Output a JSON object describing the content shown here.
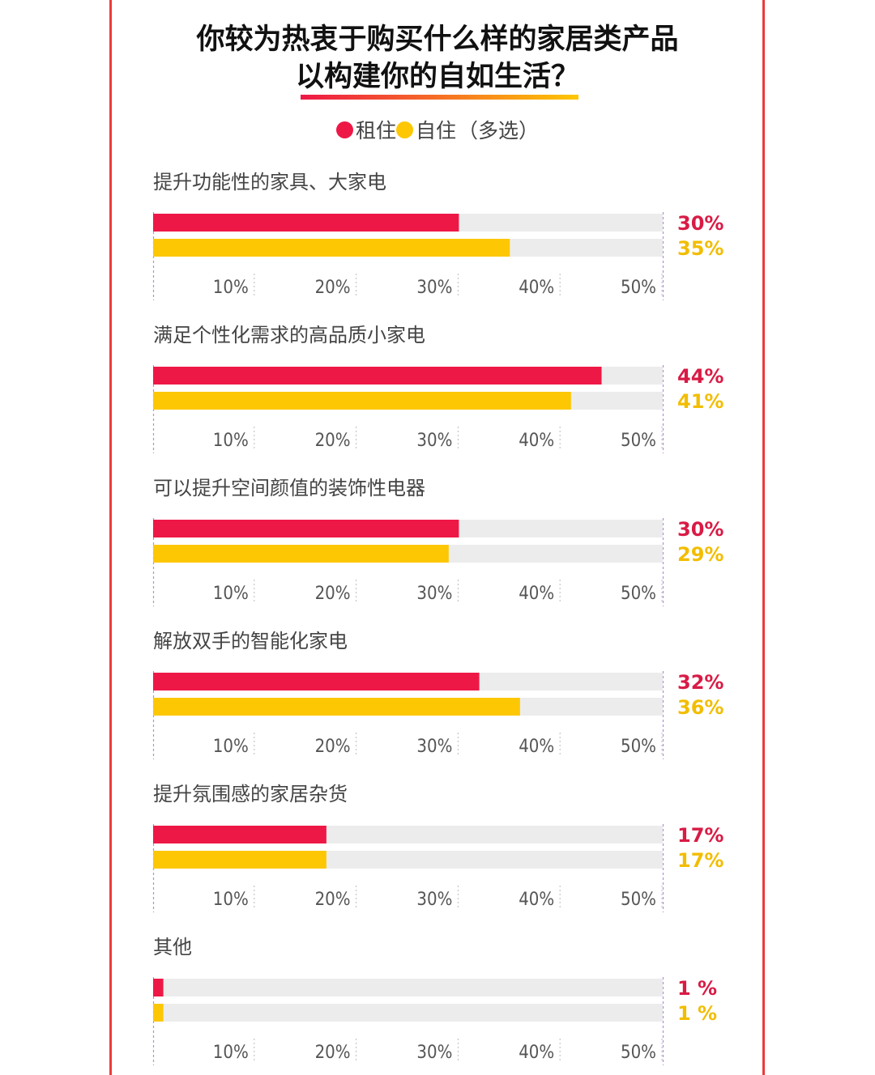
{
  "title": {
    "line1": "你较为热衷于购买什么样的家居类产品",
    "line2": "以构建你的自如生活？"
  },
  "legend": {
    "rent": "租住",
    "own": "自住",
    "note": "（多选）"
  },
  "colors": {
    "rent": "#ee1846",
    "own": "#fdc703",
    "track": "#ececec",
    "frame": "#ee3a3a",
    "rent_text": "#d81b45",
    "own_text": "#f2bd00",
    "axis_dash": "#b48fd6"
  },
  "chart_data": {
    "type": "bar",
    "categories": [
      "提升功能性的家具、大家电",
      "满足个性化需求的高品质小家电",
      "可以提升空间颜值的装饰性电器",
      "解放双手的智能化家电",
      "提升氛围感的家居杂货",
      "其他"
    ],
    "series": [
      {
        "name": "租住",
        "values": [
          30,
          44,
          30,
          32,
          17,
          1
        ]
      },
      {
        "name": "自住",
        "values": [
          35,
          41,
          29,
          36,
          17,
          1
        ]
      }
    ],
    "value_labels": {
      "rent": [
        "30%",
        "44%",
        "30%",
        "32%",
        "17%",
        "1 %"
      ],
      "own": [
        "35%",
        "41%",
        "29%",
        "36%",
        "17%",
        "1 %"
      ]
    },
    "xlim": [
      0,
      50
    ],
    "xticks": [
      "10%",
      "20%",
      "30%",
      "40%",
      "50%"
    ],
    "orientation": "horizontal",
    "legend_position": "top-center"
  }
}
